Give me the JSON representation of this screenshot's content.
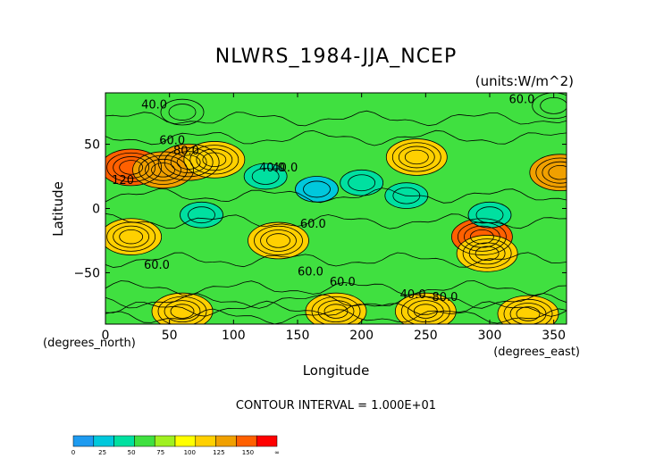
{
  "chart_data": {
    "type": "heatmap",
    "title": "NLWRS_1984-JJA_NCEP",
    "units_label": "(units:W/m^2)",
    "xlabel": "Longitude",
    "ylabel": "Latitude",
    "x_unit_label": "(degrees_east)",
    "y_unit_label": "(degrees_north)",
    "xlim": [
      0,
      360
    ],
    "ylim": [
      -90,
      90
    ],
    "x_ticks": [
      "0",
      "50",
      "100",
      "150",
      "200",
      "250",
      "300",
      "350"
    ],
    "y_ticks": [
      "50",
      "0",
      "-50"
    ],
    "contour_interval_label": "CONTOUR INTERVAL = 1.000E+01",
    "contour_labels": [
      "40.0",
      "60.0",
      "80.0",
      "120",
      "40.0",
      "40.0",
      "60.0",
      "60.0",
      "60.0",
      "60.0",
      "40.0",
      "80.0",
      "60.0"
    ],
    "colorbar": {
      "ticks": [
        "0",
        "25",
        "50",
        "75",
        "100",
        "125",
        "150",
        "∞"
      ],
      "colors": [
        "#1e9bf0",
        "#00c8dc",
        "#00e0a0",
        "#40e040",
        "#a0f020",
        "#ffff00",
        "#ffd000",
        "#f0a000",
        "#ff6000",
        "#ff0000"
      ]
    },
    "field_blobs": [
      {
        "lon": 20,
        "lat": 32,
        "value": 128
      },
      {
        "lon": 45,
        "lat": 30,
        "value": 118
      },
      {
        "lon": 65,
        "lat": 36,
        "value": 112
      },
      {
        "lon": 85,
        "lat": 38,
        "value": 100
      },
      {
        "lon": 355,
        "lat": 28,
        "value": 110
      },
      {
        "lon": 20,
        "lat": -22,
        "value": 102
      },
      {
        "lon": 135,
        "lat": -25,
        "value": 92
      },
      {
        "lon": 243,
        "lat": 40,
        "value": 94
      },
      {
        "lon": 294,
        "lat": -22,
        "value": 130
      },
      {
        "lon": 298,
        "lat": -35,
        "value": 92
      },
      {
        "lon": 180,
        "lat": -80,
        "value": 95
      },
      {
        "lon": 60,
        "lat": -80,
        "value": 90
      },
      {
        "lon": 330,
        "lat": -82,
        "value": 100
      },
      {
        "lon": 250,
        "lat": -80,
        "value": 90
      },
      {
        "lon": 165,
        "lat": 15,
        "value": 28
      },
      {
        "lon": 200,
        "lat": 20,
        "value": 38
      },
      {
        "lon": 235,
        "lat": 10,
        "value": 40
      },
      {
        "lon": 125,
        "lat": 25,
        "value": 40
      },
      {
        "lon": 300,
        "lat": -5,
        "value": 42
      },
      {
        "lon": 75,
        "lat": -5,
        "value": 42
      },
      {
        "lon": 60,
        "lat": 75,
        "value": 45
      },
      {
        "lon": 350,
        "lat": 80,
        "value": 45
      }
    ]
  }
}
